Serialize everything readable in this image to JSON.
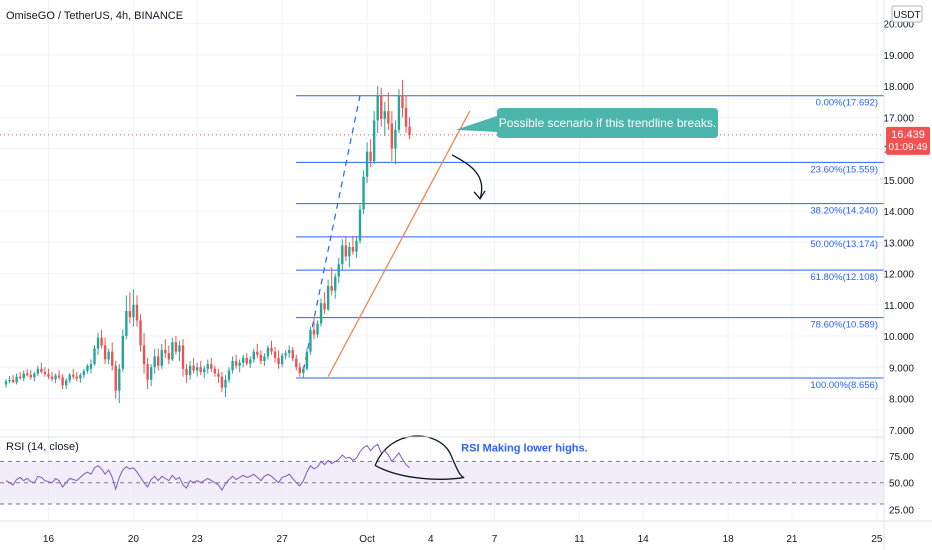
{
  "header": {
    "symbol_title": "OmiseGO / TetherUS, 4h, BINANCE",
    "currency_badge": "USDT"
  },
  "price_tag": {
    "price": "16.439",
    "countdown": "01:09:49"
  },
  "colors": {
    "up": "#26a69a",
    "down": "#ef5350",
    "fib_line": "#2962ff",
    "trendline": "#f57c3c",
    "projection": "#2962ff",
    "rsi_line": "#7e57c2",
    "rsi_band": "#ede7f6",
    "callout": "#4db6ac",
    "price_tag": "#ef5350",
    "axis_text": "#131722"
  },
  "chart_data": [
    {
      "type": "candlestick",
      "title": "OmiseGO / TetherUS, 4h, BINANCE",
      "y_axis_ticks": [
        7.0,
        8.0,
        9.0,
        10.0,
        11.0,
        12.0,
        13.0,
        14.0,
        15.0,
        16.0,
        17.0,
        18.0,
        19.0,
        20.0
      ],
      "y_axis_tick_labels": [
        "7.000",
        "8.000",
        "9.000",
        "10.000",
        "11.000",
        "12.000",
        "13.000",
        "14.000",
        "15.000",
        "16.000",
        "17.000",
        "18.000",
        "19.000",
        "20.000"
      ],
      "ylim": [
        6.8,
        20.5
      ],
      "x_axis_labels": [
        "16",
        "20",
        "23",
        "27",
        "Oct",
        "4",
        "7",
        "11",
        "14",
        "18",
        "21",
        "25"
      ],
      "x_axis_label_bar_index": [
        12,
        36,
        54,
        78,
        102,
        120,
        138,
        162,
        180,
        204,
        222,
        246
      ],
      "last_price": 16.439,
      "fib_levels": [
        {
          "ratio": "0.00%",
          "price": 17.692,
          "label": "0.00%(17.692)"
        },
        {
          "ratio": "23.60%",
          "price": 15.559,
          "label": "23.60%(15.559)"
        },
        {
          "ratio": "38.20%",
          "price": 14.24,
          "label": "38.20%(14.240)"
        },
        {
          "ratio": "50.00%",
          "price": 13.174,
          "label": "50.00%(13.174)"
        },
        {
          "ratio": "61.80%",
          "price": 12.108,
          "label": "61.80%(12.108)"
        },
        {
          "ratio": "78.60%",
          "price": 10.589,
          "label": "78.60%(10.589)"
        },
        {
          "ratio": "100.00%",
          "price": 8.656,
          "label": "100.00%(8.656)"
        }
      ],
      "trendline": {
        "from": {
          "bar": 91,
          "price": 8.7
        },
        "to": {
          "bar": 131,
          "price": 17.2
        }
      },
      "projection_line": {
        "from": {
          "bar": 84,
          "price": 8.9
        },
        "to": {
          "bar": 100,
          "price": 17.7
        }
      },
      "annotation": "Possible scenario if this trendline breaks.",
      "candles": [
        [
          8.45,
          8.62,
          8.35,
          8.55
        ],
        [
          8.55,
          8.72,
          8.48,
          8.6
        ],
        [
          8.6,
          8.75,
          8.5,
          8.52
        ],
        [
          8.52,
          8.8,
          8.45,
          8.7
        ],
        [
          8.7,
          8.85,
          8.6,
          8.65
        ],
        [
          8.65,
          8.9,
          8.55,
          8.8
        ],
        [
          8.8,
          8.95,
          8.7,
          8.75
        ],
        [
          8.75,
          8.92,
          8.6,
          8.68
        ],
        [
          8.68,
          8.85,
          8.55,
          8.8
        ],
        [
          8.8,
          9.05,
          8.72,
          8.95
        ],
        [
          8.95,
          9.15,
          8.8,
          8.85
        ],
        [
          8.85,
          9.0,
          8.7,
          8.78
        ],
        [
          8.78,
          8.95,
          8.62,
          8.7
        ],
        [
          8.7,
          8.85,
          8.55,
          8.62
        ],
        [
          8.62,
          8.8,
          8.5,
          8.74
        ],
        [
          8.74,
          8.9,
          8.6,
          8.68
        ],
        [
          8.68,
          8.78,
          8.3,
          8.42
        ],
        [
          8.42,
          8.65,
          8.3,
          8.58
        ],
        [
          8.58,
          8.82,
          8.5,
          8.76
        ],
        [
          8.76,
          8.95,
          8.62,
          8.7
        ],
        [
          8.7,
          8.85,
          8.55,
          8.64
        ],
        [
          8.64,
          8.82,
          8.5,
          8.75
        ],
        [
          8.75,
          8.95,
          8.65,
          8.88
        ],
        [
          8.88,
          9.1,
          8.8,
          9.05
        ],
        [
          8.95,
          9.25,
          8.8,
          9.1
        ],
        [
          9.1,
          9.7,
          9.05,
          9.6
        ],
        [
          9.6,
          10.1,
          9.4,
          9.95
        ],
        [
          9.95,
          10.2,
          9.6,
          9.7
        ],
        [
          9.7,
          9.95,
          9.1,
          9.25
        ],
        [
          9.25,
          9.6,
          9.1,
          9.5
        ],
        [
          9.5,
          9.8,
          8.9,
          9.05
        ],
        [
          9.05,
          9.2,
          8.0,
          8.25
        ],
        [
          8.25,
          9.1,
          7.85,
          8.95
        ],
        [
          8.95,
          10.2,
          8.85,
          10.0
        ],
        [
          10.0,
          11.3,
          9.9,
          10.8
        ],
        [
          10.8,
          11.4,
          10.4,
          10.6
        ],
        [
          10.6,
          11.5,
          10.3,
          11.0
        ],
        [
          11.0,
          11.3,
          10.3,
          10.5
        ],
        [
          10.5,
          10.7,
          9.5,
          9.7
        ],
        [
          9.7,
          10.1,
          8.8,
          9.1
        ],
        [
          9.1,
          9.3,
          8.3,
          8.6
        ],
        [
          8.6,
          9.1,
          8.4,
          9.0
        ],
        [
          9.0,
          9.6,
          8.8,
          9.35
        ],
        [
          9.35,
          9.6,
          8.9,
          9.05
        ],
        [
          9.05,
          9.75,
          8.95,
          9.55
        ],
        [
          9.55,
          9.9,
          9.3,
          9.45
        ],
        [
          9.45,
          9.7,
          9.1,
          9.25
        ],
        [
          9.25,
          9.95,
          9.2,
          9.8
        ],
        [
          9.8,
          10.0,
          9.4,
          9.5
        ],
        [
          9.5,
          9.85,
          9.2,
          9.7
        ],
        [
          9.7,
          9.9,
          8.7,
          8.95
        ],
        [
          8.95,
          9.1,
          8.5,
          8.75
        ],
        [
          8.75,
          9.2,
          8.6,
          9.05
        ],
        [
          9.05,
          9.3,
          8.8,
          8.9
        ],
        [
          8.9,
          9.15,
          8.7,
          9.0
        ],
        [
          9.0,
          9.2,
          8.75,
          8.85
        ],
        [
          8.85,
          9.05,
          8.65,
          8.95
        ],
        [
          8.95,
          9.25,
          8.8,
          9.1
        ],
        [
          9.1,
          9.3,
          8.85,
          8.95
        ],
        [
          8.95,
          9.05,
          8.7,
          8.8
        ],
        [
          8.8,
          8.95,
          8.5,
          8.7
        ],
        [
          8.7,
          8.85,
          8.2,
          8.35
        ],
        [
          8.35,
          8.75,
          8.05,
          8.6
        ],
        [
          8.6,
          9.0,
          8.5,
          8.9
        ],
        [
          8.9,
          9.35,
          8.8,
          9.2
        ],
        [
          9.2,
          9.4,
          8.95,
          9.05
        ],
        [
          9.05,
          9.25,
          8.85,
          9.15
        ],
        [
          9.15,
          9.4,
          9.0,
          9.3
        ],
        [
          9.3,
          9.45,
          9.05,
          9.12
        ],
        [
          9.12,
          9.35,
          8.98,
          9.25
        ],
        [
          9.25,
          9.6,
          9.15,
          9.5
        ],
        [
          9.5,
          9.75,
          9.3,
          9.4
        ],
        [
          9.4,
          9.55,
          9.1,
          9.2
        ],
        [
          9.2,
          9.45,
          9.05,
          9.35
        ],
        [
          9.35,
          9.7,
          9.25,
          9.62
        ],
        [
          9.62,
          9.85,
          9.4,
          9.5
        ],
        [
          9.5,
          9.65,
          9.15,
          9.3
        ],
        [
          9.3,
          9.55,
          8.95,
          9.1
        ],
        [
          9.1,
          9.45,
          9.0,
          9.38
        ],
        [
          9.38,
          9.55,
          9.25,
          9.45
        ],
        [
          9.45,
          9.7,
          9.3,
          9.55
        ],
        [
          9.55,
          9.65,
          9.2,
          9.28
        ],
        [
          9.28,
          9.4,
          8.9,
          9.0
        ],
        [
          9.0,
          9.15,
          8.7,
          8.82
        ],
        [
          8.82,
          9.05,
          8.66,
          8.95
        ],
        [
          8.95,
          9.6,
          8.9,
          9.5
        ],
        [
          9.5,
          10.3,
          9.4,
          10.2
        ],
        [
          10.2,
          10.6,
          9.9,
          10.05
        ],
        [
          10.05,
          10.5,
          9.95,
          10.4
        ],
        [
          10.4,
          11.2,
          10.3,
          11.05
        ],
        [
          11.05,
          11.4,
          10.7,
          10.85
        ],
        [
          10.85,
          11.8,
          10.8,
          11.6
        ],
        [
          11.6,
          12.2,
          11.3,
          11.45
        ],
        [
          11.45,
          12.0,
          11.2,
          11.9
        ],
        [
          11.9,
          12.5,
          11.7,
          12.3
        ],
        [
          12.3,
          13.1,
          12.1,
          12.9
        ],
        [
          12.9,
          13.2,
          12.4,
          12.55
        ],
        [
          12.55,
          13.0,
          12.2,
          12.85
        ],
        [
          12.85,
          13.2,
          12.6,
          12.7
        ],
        [
          12.7,
          13.2,
          12.5,
          13.05
        ],
        [
          13.05,
          14.2,
          12.95,
          14.05
        ],
        [
          14.05,
          15.3,
          13.9,
          15.1
        ],
        [
          15.1,
          16.2,
          14.9,
          15.9
        ],
        [
          15.9,
          16.3,
          15.4,
          15.6
        ],
        [
          15.6,
          17.2,
          15.5,
          16.9
        ],
        [
          16.9,
          18.0,
          16.5,
          17.7
        ],
        [
          17.7,
          17.95,
          16.7,
          16.95
        ],
        [
          16.95,
          17.5,
          16.4,
          17.2
        ],
        [
          17.2,
          17.8,
          16.6,
          16.8
        ],
        [
          16.8,
          17.2,
          15.6,
          16.0
        ],
        [
          16.0,
          16.9,
          15.5,
          16.6
        ],
        [
          16.6,
          17.9,
          16.5,
          17.7
        ],
        [
          17.7,
          18.2,
          17.0,
          17.3
        ],
        [
          17.3,
          17.7,
          16.5,
          16.7
        ],
        [
          16.7,
          17.0,
          16.3,
          16.439
        ]
      ]
    },
    {
      "type": "line",
      "title": "RSI (14, close)",
      "annotation": "RSI Making lower highs.",
      "y_axis_ticks": [
        25.0,
        50.0,
        75.0
      ],
      "y_axis_tick_labels": [
        "25.00",
        "50.00",
        "75.00"
      ],
      "ylim": [
        15,
        92
      ],
      "bands": [
        30,
        70
      ],
      "midline": 50,
      "values": [
        52,
        50,
        48,
        53,
        55,
        52,
        54,
        51,
        50,
        56,
        55,
        52,
        51,
        50,
        54,
        52,
        46,
        50,
        54,
        53,
        52,
        55,
        58,
        60,
        58,
        64,
        66,
        63,
        58,
        62,
        55,
        44,
        55,
        62,
        65,
        63,
        64,
        60,
        55,
        50,
        46,
        53,
        56,
        52,
        56,
        54,
        52,
        57,
        53,
        55,
        48,
        45,
        52,
        50,
        52,
        50,
        52,
        54,
        52,
        50,
        48,
        43,
        49,
        53,
        56,
        53,
        55,
        57,
        55,
        56,
        58,
        55,
        52,
        56,
        58,
        56,
        53,
        50,
        55,
        56,
        58,
        54,
        50,
        47,
        52,
        60,
        66,
        63,
        65,
        70,
        67,
        71,
        68,
        70,
        72,
        76,
        73,
        74,
        71,
        73,
        79,
        83,
        85,
        80,
        84,
        86,
        78,
        80,
        76,
        70,
        74,
        78,
        72,
        67,
        64
      ]
    }
  ]
}
